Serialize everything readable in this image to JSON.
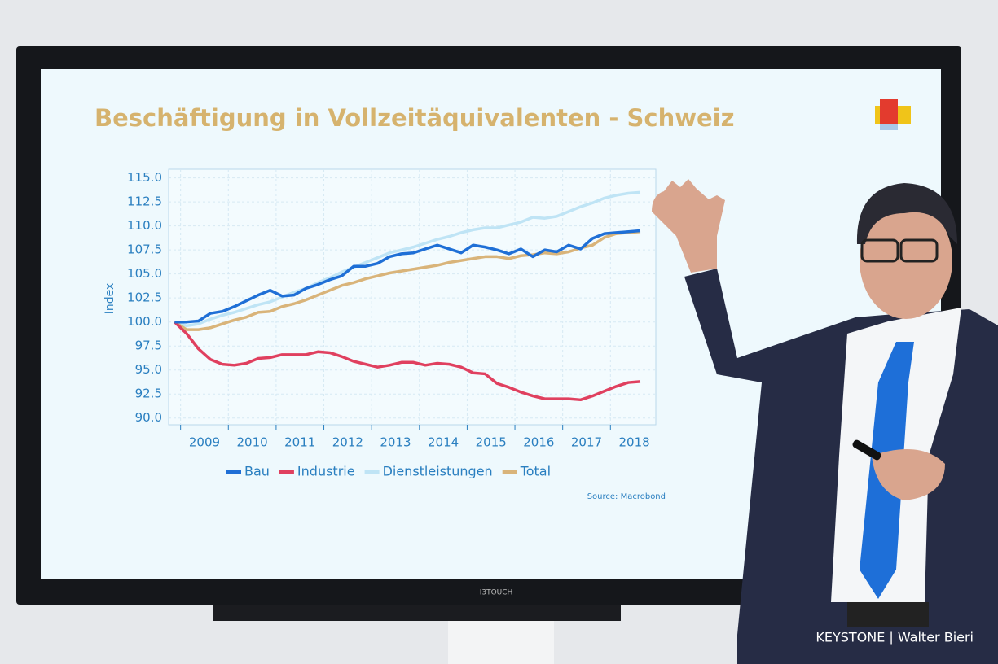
{
  "chart_data": {
    "type": "line",
    "title": "Beschäftigung in Vollzeitäquivalenten - Schweiz",
    "y_label": "Index",
    "source": "Source: Macrobond",
    "x": [
      2008.875,
      2009.125,
      2009.375,
      2009.625,
      2009.875,
      2010.125,
      2010.375,
      2010.625,
      2010.875,
      2011.125,
      2011.375,
      2011.625,
      2011.875,
      2012.125,
      2012.375,
      2012.625,
      2012.875,
      2013.125,
      2013.375,
      2013.625,
      2013.875,
      2014.125,
      2014.375,
      2014.625,
      2014.875,
      2015.125,
      2015.375,
      2015.625,
      2015.875,
      2016.125,
      2016.375,
      2016.625,
      2016.875,
      2017.125,
      2017.375,
      2017.625,
      2017.875,
      2018.125,
      2018.375,
      2018.625
    ],
    "series": [
      {
        "name": "Bau",
        "color": "#1f6fd6",
        "values": [
          100,
          100,
          100.1,
          100.9,
          101.1,
          101.6,
          102.2,
          102.8,
          103.3,
          102.7,
          102.8,
          103.5,
          103.9,
          104.4,
          104.8,
          105.8,
          105.8,
          106.1,
          106.8,
          107.1,
          107.2,
          107.6,
          108,
          107.6,
          107.2,
          108,
          107.8,
          107.5,
          107.1,
          107.6,
          106.8,
          107.5,
          107.3,
          108,
          107.6,
          108.7,
          109.2,
          109.3,
          109.4,
          109.5
        ]
      },
      {
        "name": "Industrie",
        "color": "#e0405f",
        "values": [
          100,
          98.8,
          97.2,
          96.1,
          95.6,
          95.5,
          95.7,
          96.2,
          96.3,
          96.6,
          96.6,
          96.6,
          96.9,
          96.8,
          96.4,
          95.9,
          95.6,
          95.3,
          95.5,
          95.8,
          95.8,
          95.5,
          95.7,
          95.6,
          95.3,
          94.7,
          94.6,
          93.6,
          93.2,
          92.7,
          92.3,
          92,
          92,
          92,
          91.9,
          92.3,
          92.8,
          93.3,
          93.7,
          93.8
        ]
      },
      {
        "name": "Dienstleistungen",
        "color": "#bfe4f5",
        "values": [
          100,
          99.6,
          99.8,
          100.3,
          100.7,
          101,
          101.4,
          101.8,
          102.1,
          102.6,
          103.1,
          103.5,
          104.1,
          104.6,
          105.2,
          105.7,
          106.2,
          106.7,
          107.2,
          107.5,
          107.8,
          108.2,
          108.6,
          108.9,
          109.3,
          109.6,
          109.8,
          109.8,
          110.1,
          110.4,
          110.9,
          110.8,
          111,
          111.5,
          112,
          112.4,
          112.9,
          113.2,
          113.4,
          113.5
        ]
      },
      {
        "name": "Total",
        "color": "#d9b47a",
        "values": [
          100,
          99.2,
          99.2,
          99.4,
          99.8,
          100.2,
          100.5,
          101,
          101.1,
          101.6,
          101.9,
          102.3,
          102.8,
          103.3,
          103.8,
          104.1,
          104.5,
          104.8,
          105.1,
          105.3,
          105.5,
          105.7,
          105.9,
          106.2,
          106.4,
          106.6,
          106.8,
          106.8,
          106.6,
          106.9,
          107,
          107.2,
          107.1,
          107.3,
          107.7,
          108,
          108.8,
          109.2,
          109.3,
          109.4
        ]
      }
    ],
    "xlim": [
      2008.75,
      2018.95
    ],
    "xticks": [
      2009,
      2010,
      2011,
      2012,
      2013,
      2014,
      2015,
      2016,
      2017,
      2018
    ],
    "ylim": [
      89.3,
      115.9
    ],
    "yticks": [
      {
        "value": 90,
        "label": "90.0"
      },
      {
        "value": 92.5,
        "label": "92.5"
      },
      {
        "value": 95,
        "label": "95.0"
      },
      {
        "value": 97.5,
        "label": "97.5"
      },
      {
        "value": 100,
        "label": "100.0"
      },
      {
        "value": 102.5,
        "label": "102.5"
      },
      {
        "value": 105,
        "label": "105.0"
      },
      {
        "value": 107.5,
        "label": "107.5"
      },
      {
        "value": 110,
        "label": "110.0"
      },
      {
        "value": 112.5,
        "label": "112.5"
      },
      {
        "value": 115,
        "label": "115.0"
      }
    ],
    "grid": true
  },
  "photo": {
    "brand": "I3TOUCH",
    "credit": "KEYSTONE | Walter Bieri"
  }
}
